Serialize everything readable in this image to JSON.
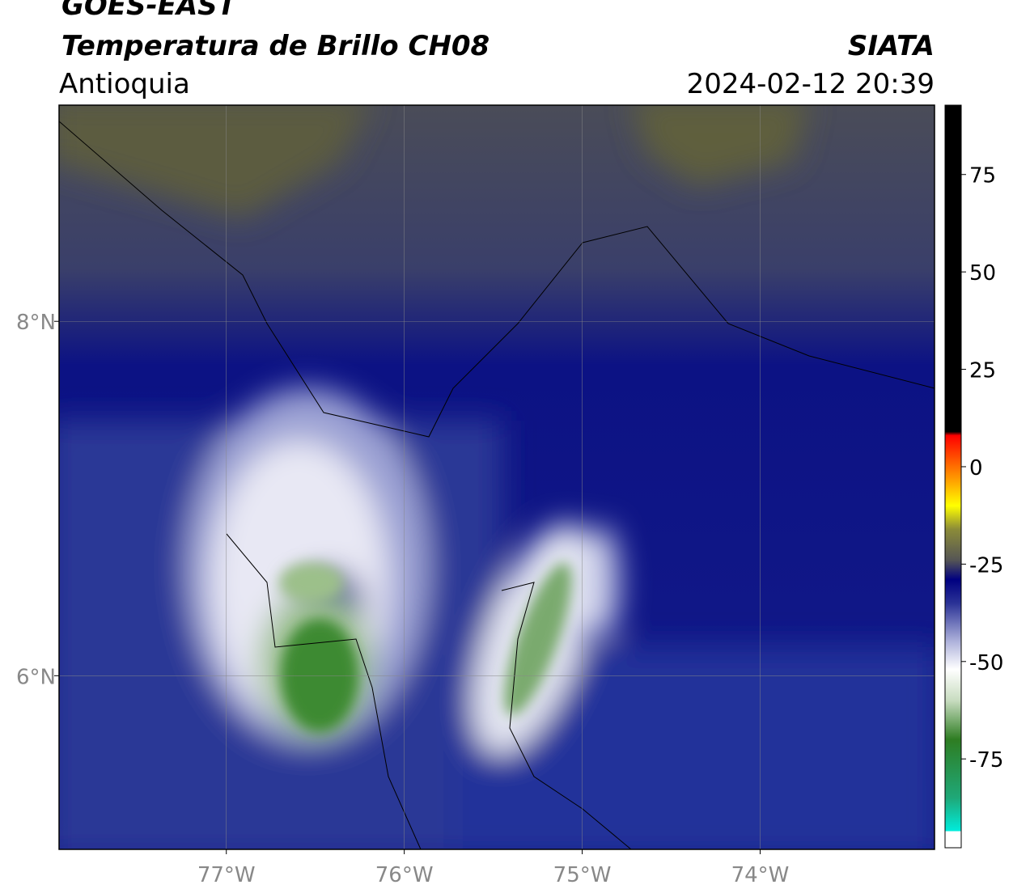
{
  "header": {
    "title": "GOES-EAST",
    "subtitle": "Temperatura de Brillo CH08",
    "region": "Antioquia",
    "source": "SIATA",
    "datetime": "2024-02-12 20:39"
  },
  "map": {
    "lonlim": [
      -77.94,
      -73.02
    ],
    "latlim": [
      5.02,
      9.22
    ],
    "grid": true,
    "lon_ticks": [
      {
        "value": -77,
        "label": "77°W"
      },
      {
        "value": -76,
        "label": "76°W"
      },
      {
        "value": -75,
        "label": "75°W"
      },
      {
        "value": -74,
        "label": "74°W"
      }
    ],
    "lat_ticks": [
      {
        "value": 8,
        "label": "8°N"
      },
      {
        "value": 6,
        "label": "6°N"
      }
    ]
  },
  "colorbar": {
    "lim": [
      -97.8,
      92.8
    ],
    "ticks": [
      75,
      50,
      25,
      0,
      -25,
      -50,
      -75
    ],
    "stops": [
      {
        "value": -97.8,
        "color": "#ffffff"
      },
      {
        "value": -93.6,
        "color": "#ffffff"
      },
      {
        "value": -93.5,
        "color": "#00ecdc"
      },
      {
        "value": -85,
        "color": "#1fa878"
      },
      {
        "value": -70,
        "color": "#2e7d22"
      },
      {
        "value": -60,
        "color": "#c8dcc0"
      },
      {
        "value": -52,
        "color": "#ffffff"
      },
      {
        "value": -45,
        "color": "#b0b4dc"
      },
      {
        "value": -35,
        "color": "#2a3296"
      },
      {
        "value": -29,
        "color": "#000080"
      },
      {
        "value": -24,
        "color": "#555555"
      },
      {
        "value": -16,
        "color": "#8c8c38"
      },
      {
        "value": -10,
        "color": "#ffff00"
      },
      {
        "value": -3,
        "color": "#ff9900"
      },
      {
        "value": 8,
        "color": "#ff0000"
      },
      {
        "value": 9,
        "color": "#000000"
      },
      {
        "value": 92.8,
        "color": "#000000"
      }
    ]
  }
}
